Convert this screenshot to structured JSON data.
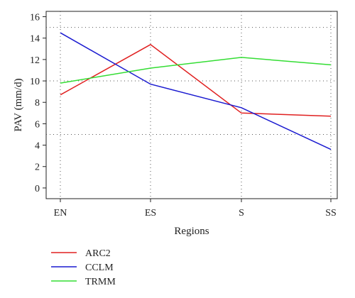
{
  "chart_data": {
    "type": "line",
    "categories": [
      "EN",
      "ES",
      "S",
      "SS"
    ],
    "xlabel": "Regions",
    "ylabel": "PAV (mm/d)",
    "ylim": [
      -1,
      16.5
    ],
    "yticks": [
      0,
      2,
      4,
      6,
      8,
      10,
      12,
      14,
      16
    ],
    "grid": "dotted",
    "grid_h_lines": [
      5,
      10,
      15
    ],
    "legend_position": "bottom-left",
    "series": [
      {
        "name": "ARC2",
        "color": "#e02020",
        "values": [
          8.7,
          13.4,
          7.0,
          6.7
        ]
      },
      {
        "name": "CCLM",
        "color": "#1a1ad0",
        "values": [
          14.5,
          9.7,
          7.5,
          3.6
        ]
      },
      {
        "name": "TRMM",
        "color": "#33dd33",
        "values": [
          9.8,
          11.2,
          12.2,
          11.5
        ]
      }
    ]
  }
}
